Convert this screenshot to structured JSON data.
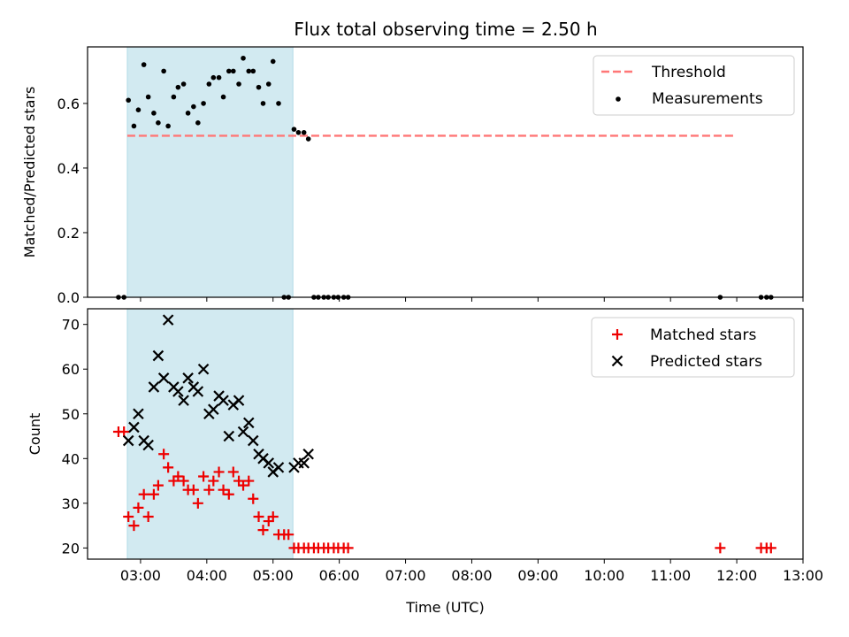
{
  "title": "Flux total observing time = 2.50 h",
  "colors": {
    "threshold": "#ff7777",
    "measurement": "#000000",
    "matched": "#ee0000",
    "predicted": "#000000",
    "span": "#add8e6"
  },
  "chart_data": [
    {
      "type": "scatter",
      "ylabel": "Matched/Predicted stars",
      "xlim": [
        "02:12",
        "13:00"
      ],
      "ylim": [
        0,
        0.775
      ],
      "yticks": [
        "0.0",
        "0.2",
        "0.4",
        "0.6"
      ],
      "span": [
        "02:48",
        "05:18"
      ],
      "legend": {
        "position": "top-right",
        "threshold_label": "Threshold",
        "measurements_label": "Measurements"
      },
      "threshold": {
        "value": 0.5,
        "x": [
          "02:48",
          "11:57"
        ]
      },
      "measurements": {
        "name": "Measurements",
        "points": [
          [
            "02:40",
            0
          ],
          [
            "02:45",
            0
          ],
          [
            "02:49",
            0.61
          ],
          [
            "02:54",
            0.53
          ],
          [
            "02:58",
            0.58
          ],
          [
            "03:03",
            0.72
          ],
          [
            "03:07",
            0.62
          ],
          [
            "03:12",
            0.57
          ],
          [
            "03:16",
            0.54
          ],
          [
            "03:21",
            0.7
          ],
          [
            "03:25",
            0.53
          ],
          [
            "03:30",
            0.62
          ],
          [
            "03:34",
            0.65
          ],
          [
            "03:39",
            0.66
          ],
          [
            "03:43",
            0.57
          ],
          [
            "03:48",
            0.59
          ],
          [
            "03:52",
            0.54
          ],
          [
            "03:57",
            0.6
          ],
          [
            "04:02",
            0.66
          ],
          [
            "04:06",
            0.68
          ],
          [
            "04:11",
            0.68
          ],
          [
            "04:15",
            0.62
          ],
          [
            "04:20",
            0.7
          ],
          [
            "04:24",
            0.7
          ],
          [
            "04:29",
            0.66
          ],
          [
            "04:33",
            0.74
          ],
          [
            "04:38",
            0.7
          ],
          [
            "04:42",
            0.7
          ],
          [
            "04:47",
            0.65
          ],
          [
            "04:51",
            0.6
          ],
          [
            "04:56",
            0.66
          ],
          [
            "05:00",
            0.73
          ],
          [
            "05:05",
            0.6
          ],
          [
            "05:10",
            0
          ],
          [
            "05:14",
            0
          ],
          [
            "05:19",
            0.52
          ],
          [
            "05:23",
            0.51
          ],
          [
            "05:28",
            0.51
          ],
          [
            "05:32",
            0.49
          ],
          [
            "05:37",
            0
          ],
          [
            "05:41",
            0
          ],
          [
            "05:46",
            0
          ],
          [
            "05:50",
            0
          ],
          [
            "05:55",
            0
          ],
          [
            "05:59",
            0
          ],
          [
            "06:04",
            0
          ],
          [
            "06:08",
            0
          ],
          [
            "11:45",
            0
          ],
          [
            "12:22",
            0
          ],
          [
            "12:27",
            0
          ],
          [
            "12:31",
            0
          ]
        ]
      }
    },
    {
      "type": "scatter",
      "xlabel": "Time (UTC)",
      "ylabel": "Count",
      "xlim": [
        "02:12",
        "13:00"
      ],
      "ylim": [
        17.5,
        73.5
      ],
      "yticks": [
        "20",
        "30",
        "40",
        "50",
        "60",
        "70"
      ],
      "xticks": [
        "03:00",
        "04:00",
        "05:00",
        "06:00",
        "07:00",
        "08:00",
        "09:00",
        "10:00",
        "11:00",
        "12:00",
        "13:00"
      ],
      "span": [
        "02:48",
        "05:18"
      ],
      "legend": {
        "position": "top-right",
        "matched_label": "Matched stars",
        "predicted_label": "Predicted stars"
      },
      "series": [
        {
          "name": "Matched stars",
          "marker": "plus",
          "points": [
            [
              "02:40",
              46
            ],
            [
              "02:45",
              46
            ],
            [
              "02:49",
              27
            ],
            [
              "02:54",
              25
            ],
            [
              "02:58",
              29
            ],
            [
              "03:03",
              32
            ],
            [
              "03:07",
              27
            ],
            [
              "03:12",
              32
            ],
            [
              "03:16",
              34
            ],
            [
              "03:21",
              41
            ],
            [
              "03:25",
              38
            ],
            [
              "03:30",
              35
            ],
            [
              "03:34",
              36
            ],
            [
              "03:39",
              35
            ],
            [
              "03:43",
              33
            ],
            [
              "03:48",
              33
            ],
            [
              "03:52",
              30
            ],
            [
              "03:57",
              36
            ],
            [
              "04:02",
              33
            ],
            [
              "04:06",
              35
            ],
            [
              "04:11",
              37
            ],
            [
              "04:15",
              33
            ],
            [
              "04:20",
              32
            ],
            [
              "04:24",
              37
            ],
            [
              "04:29",
              35
            ],
            [
              "04:33",
              34
            ],
            [
              "04:38",
              35
            ],
            [
              "04:42",
              31
            ],
            [
              "04:47",
              27
            ],
            [
              "04:51",
              24
            ],
            [
              "04:56",
              26
            ],
            [
              "05:00",
              27
            ],
            [
              "05:05",
              23
            ],
            [
              "05:10",
              23
            ],
            [
              "05:14",
              23
            ],
            [
              "05:19",
              20
            ],
            [
              "05:23",
              20
            ],
            [
              "05:28",
              20
            ],
            [
              "05:32",
              20
            ],
            [
              "05:37",
              20
            ],
            [
              "05:41",
              20
            ],
            [
              "05:46",
              20
            ],
            [
              "05:50",
              20
            ],
            [
              "05:55",
              20
            ],
            [
              "05:59",
              20
            ],
            [
              "06:04",
              20
            ],
            [
              "06:08",
              20
            ],
            [
              "11:45",
              20
            ],
            [
              "12:22",
              20
            ],
            [
              "12:27",
              20
            ],
            [
              "12:31",
              20
            ]
          ]
        },
        {
          "name": "Predicted stars",
          "marker": "x",
          "points": [
            [
              "02:49",
              44
            ],
            [
              "02:54",
              47
            ],
            [
              "02:58",
              50
            ],
            [
              "03:03",
              44
            ],
            [
              "03:07",
              43
            ],
            [
              "03:12",
              56
            ],
            [
              "03:16",
              63
            ],
            [
              "03:21",
              58
            ],
            [
              "03:25",
              71
            ],
            [
              "03:30",
              56
            ],
            [
              "03:34",
              55
            ],
            [
              "03:39",
              53
            ],
            [
              "03:43",
              58
            ],
            [
              "03:48",
              56
            ],
            [
              "03:52",
              55
            ],
            [
              "03:57",
              60
            ],
            [
              "04:02",
              50
            ],
            [
              "04:06",
              51
            ],
            [
              "04:11",
              54
            ],
            [
              "04:15",
              53
            ],
            [
              "04:20",
              45
            ],
            [
              "04:24",
              52
            ],
            [
              "04:29",
              53
            ],
            [
              "04:33",
              46
            ],
            [
              "04:38",
              48
            ],
            [
              "04:42",
              44
            ],
            [
              "04:47",
              41
            ],
            [
              "04:51",
              40
            ],
            [
              "04:56",
              39
            ],
            [
              "05:00",
              37
            ],
            [
              "05:05",
              38
            ],
            [
              "05:19",
              38
            ],
            [
              "05:23",
              39
            ],
            [
              "05:28",
              39
            ],
            [
              "05:32",
              41
            ]
          ]
        }
      ]
    }
  ]
}
